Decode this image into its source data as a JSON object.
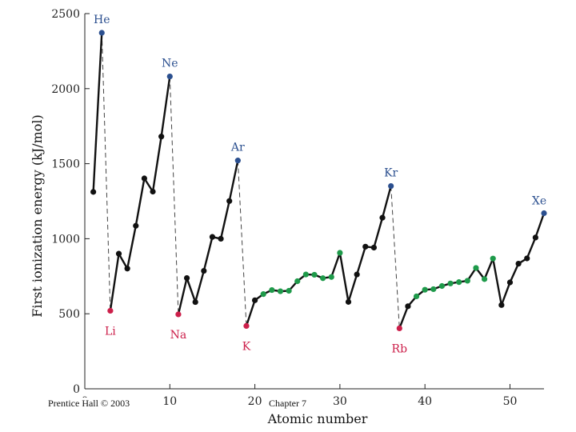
{
  "chart_data": {
    "type": "line",
    "title": "",
    "xlabel": "Atomic number",
    "ylabel": "First ionization energy (kJ/mol)",
    "xlim": [
      0,
      54
    ],
    "ylim": [
      0,
      2500
    ],
    "xticks": [
      0,
      10,
      20,
      30,
      40,
      50
    ],
    "yticks": [
      0,
      500,
      1000,
      1500,
      2000,
      2500
    ],
    "colors": {
      "noble": "#2b4f8f",
      "alkali": "#cc1f4a",
      "transition": "#1e9a4a",
      "other": "#111111"
    },
    "points": [
      {
        "z": 1,
        "e": 1312,
        "group": "other"
      },
      {
        "z": 2,
        "e": 2372,
        "group": "noble"
      },
      {
        "z": 3,
        "e": 520,
        "group": "alkali"
      },
      {
        "z": 4,
        "e": 900,
        "group": "other"
      },
      {
        "z": 5,
        "e": 801,
        "group": "other"
      },
      {
        "z": 6,
        "e": 1086,
        "group": "other"
      },
      {
        "z": 7,
        "e": 1402,
        "group": "other"
      },
      {
        "z": 8,
        "e": 1314,
        "group": "other"
      },
      {
        "z": 9,
        "e": 1681,
        "group": "other"
      },
      {
        "z": 10,
        "e": 2081,
        "group": "noble"
      },
      {
        "z": 11,
        "e": 496,
        "group": "alkali"
      },
      {
        "z": 12,
        "e": 738,
        "group": "other"
      },
      {
        "z": 13,
        "e": 578,
        "group": "other"
      },
      {
        "z": 14,
        "e": 786,
        "group": "other"
      },
      {
        "z": 15,
        "e": 1012,
        "group": "other"
      },
      {
        "z": 16,
        "e": 1000,
        "group": "other"
      },
      {
        "z": 17,
        "e": 1251,
        "group": "other"
      },
      {
        "z": 18,
        "e": 1521,
        "group": "noble"
      },
      {
        "z": 19,
        "e": 419,
        "group": "alkali"
      },
      {
        "z": 20,
        "e": 590,
        "group": "other"
      },
      {
        "z": 21,
        "e": 631,
        "group": "transition"
      },
      {
        "z": 22,
        "e": 658,
        "group": "transition"
      },
      {
        "z": 23,
        "e": 650,
        "group": "transition"
      },
      {
        "z": 24,
        "e": 653,
        "group": "transition"
      },
      {
        "z": 25,
        "e": 717,
        "group": "transition"
      },
      {
        "z": 26,
        "e": 762,
        "group": "transition"
      },
      {
        "z": 27,
        "e": 760,
        "group": "transition"
      },
      {
        "z": 28,
        "e": 737,
        "group": "transition"
      },
      {
        "z": 29,
        "e": 745,
        "group": "transition"
      },
      {
        "z": 30,
        "e": 906,
        "group": "transition"
      },
      {
        "z": 31,
        "e": 579,
        "group": "other"
      },
      {
        "z": 32,
        "e": 762,
        "group": "other"
      },
      {
        "z": 33,
        "e": 947,
        "group": "other"
      },
      {
        "z": 34,
        "e": 941,
        "group": "other"
      },
      {
        "z": 35,
        "e": 1140,
        "group": "other"
      },
      {
        "z": 36,
        "e": 1351,
        "group": "noble"
      },
      {
        "z": 37,
        "e": 403,
        "group": "alkali"
      },
      {
        "z": 38,
        "e": 550,
        "group": "other"
      },
      {
        "z": 39,
        "e": 616,
        "group": "transition"
      },
      {
        "z": 40,
        "e": 660,
        "group": "transition"
      },
      {
        "z": 41,
        "e": 664,
        "group": "transition"
      },
      {
        "z": 42,
        "e": 685,
        "group": "transition"
      },
      {
        "z": 43,
        "e": 702,
        "group": "transition"
      },
      {
        "z": 44,
        "e": 711,
        "group": "transition"
      },
      {
        "z": 45,
        "e": 720,
        "group": "transition"
      },
      {
        "z": 46,
        "e": 805,
        "group": "transition"
      },
      {
        "z": 47,
        "e": 731,
        "group": "transition"
      },
      {
        "z": 48,
        "e": 868,
        "group": "transition"
      },
      {
        "z": 49,
        "e": 558,
        "group": "other"
      },
      {
        "z": 50,
        "e": 709,
        "group": "other"
      },
      {
        "z": 51,
        "e": 834,
        "group": "other"
      },
      {
        "z": 52,
        "e": 869,
        "group": "other"
      },
      {
        "z": 53,
        "e": 1008,
        "group": "other"
      },
      {
        "z": 54,
        "e": 1170,
        "group": "noble"
      }
    ],
    "dashed_links": [
      [
        2,
        3
      ],
      [
        10,
        11
      ],
      [
        18,
        19
      ],
      [
        36,
        37
      ]
    ],
    "annotations": [
      {
        "text": "He",
        "z": 2,
        "group": "noble",
        "pos": "above"
      },
      {
        "text": "Ne",
        "z": 10,
        "group": "noble",
        "pos": "above"
      },
      {
        "text": "Ar",
        "z": 18,
        "group": "noble",
        "pos": "above"
      },
      {
        "text": "Kr",
        "z": 36,
        "group": "noble",
        "pos": "above"
      },
      {
        "text": "Xe",
        "z": 54,
        "group": "noble",
        "pos": "above-left"
      },
      {
        "text": "Li",
        "z": 3,
        "group": "alkali",
        "pos": "below"
      },
      {
        "text": "Na",
        "z": 11,
        "group": "alkali",
        "pos": "below"
      },
      {
        "text": "K",
        "z": 19,
        "group": "alkali",
        "pos": "below"
      },
      {
        "text": "Rb",
        "z": 37,
        "group": "alkali",
        "pos": "below"
      }
    ]
  },
  "footer": {
    "left": "Prentice Hall © 2003",
    "center": "Chapter 7"
  }
}
